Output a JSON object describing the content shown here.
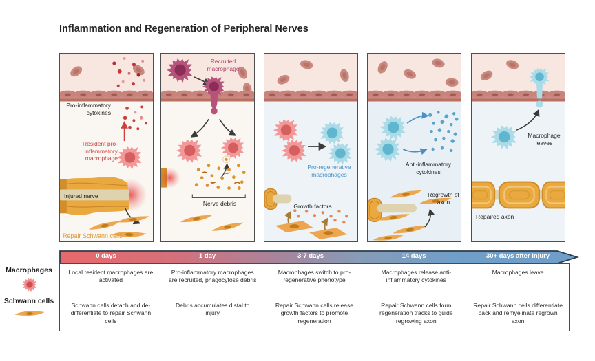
{
  "title": "Inflammation and Regeneration of Peripheral Nerves",
  "colors": {
    "timeline_start_red": "#e8696b",
    "timeline_end_blue": "#6f9fc9",
    "resident_macrophage_text": "#cc4444",
    "recruited_macrophage_text": "#b0406a",
    "pro_regenerative_text": "#4a90c4",
    "repair_schwann_text": "#dd9a33",
    "macrophage_pink": "#f29d9d",
    "macrophage_blue": "#aadbe7",
    "schwann_orange": "#eca64e",
    "vessel_wall": "#cb8a82"
  },
  "panels": [
    {
      "stage": "0 days",
      "labels": {
        "cytokines": "Pro-inflammatory cytokines",
        "resident": "Resident pro-inflammatory macrophage",
        "injured_nerve": "Injured nerve",
        "repair_schwann": "Repair Schwann cells"
      }
    },
    {
      "stage": "1 day",
      "labels": {
        "recruited": "Recruited macrophage",
        "debris": "Nerve debris"
      }
    },
    {
      "stage": "3-7 days",
      "labels": {
        "pro_regen": "Pro-regenerative macrophages",
        "growth": "Growth factors"
      }
    },
    {
      "stage": "14 days",
      "labels": {
        "anti": "Anti-inflammatory cytokines",
        "regrowth": "Regrowth of axon"
      }
    },
    {
      "stage": "30+ days after injury",
      "labels": {
        "leaves": "Macrophage leaves",
        "repaired": "Repaired axon"
      }
    }
  ],
  "timeline": {
    "stages": [
      "0 days",
      "1 day",
      "3-7 days",
      "14 days",
      "30+ days after injury"
    ]
  },
  "legend": {
    "rows": [
      {
        "label": "Macrophages"
      },
      {
        "label": "Schwann cells"
      }
    ]
  },
  "table": {
    "macrophages": [
      "Local resident macrophages are activated",
      "Pro-inflammatory macrophages are recruited, phagocytose debris",
      "Macrophages switch to pro-regenerative phenotype",
      "Macrophages release anti-inflammatory cytokines",
      "Macrophages leave"
    ],
    "schwann": [
      "Schwann cells detach and de-differentiate to repair Schwann cells",
      "Debris accumulates distal to injury",
      "Repair Schwann cells release growth factors to promote regeneration",
      "Repair Schwann cells form regeneration tracks to guide regrowing axon",
      "Repair Schwann cells differentiate back and remyelinate regrown axon"
    ]
  }
}
